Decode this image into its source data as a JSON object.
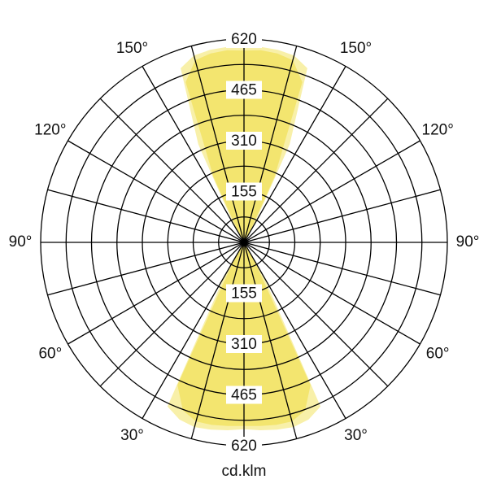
{
  "chart_data": {
    "type": "polar",
    "axis_label": "cd.klm",
    "rlim": [
      0,
      620
    ],
    "rgrid": [
      77.5,
      155,
      232.5,
      310,
      387.5,
      465,
      542.5,
      620
    ],
    "rticks": [
      155,
      310,
      465,
      620
    ],
    "theta_grid": [
      0,
      15,
      30,
      45,
      60,
      75,
      90,
      105,
      120,
      135,
      150,
      165
    ],
    "angle_labels": [
      {
        "value": 30,
        "label": "30°"
      },
      {
        "value": 60,
        "label": "60°"
      },
      {
        "value": 90,
        "label": "90°"
      },
      {
        "value": 120,
        "label": "120°"
      },
      {
        "value": 150,
        "label": "150°"
      }
    ],
    "angles": [
      0,
      5,
      10,
      15,
      20,
      25,
      30,
      35,
      40,
      45,
      50,
      55,
      60,
      65,
      70,
      75,
      80,
      85,
      90,
      95,
      100,
      105,
      110,
      115,
      120,
      125,
      130,
      135,
      140,
      145,
      150,
      155,
      160,
      165,
      170,
      175,
      180
    ],
    "series": [
      {
        "color": "#f6eb8c",
        "values": [
          570,
          575,
          580,
          583,
          575,
          552,
          120,
          15,
          8,
          6,
          5,
          5,
          5,
          5,
          5,
          5,
          5,
          5,
          5,
          5,
          5,
          5,
          5,
          5,
          5,
          5,
          5,
          6,
          8,
          15,
          60,
          330,
          565,
          590,
          596,
          598,
          595
        ]
      },
      {
        "color": "#f2e15c",
        "values": [
          560,
          562,
          565,
          565,
          545,
          480,
          60,
          10,
          6,
          5,
          5,
          5,
          5,
          5,
          5,
          5,
          5,
          5,
          5,
          5,
          5,
          5,
          5,
          5,
          5,
          5,
          5,
          5,
          6,
          10,
          30,
          220,
          520,
          575,
          585,
          588,
          585
        ]
      }
    ]
  }
}
